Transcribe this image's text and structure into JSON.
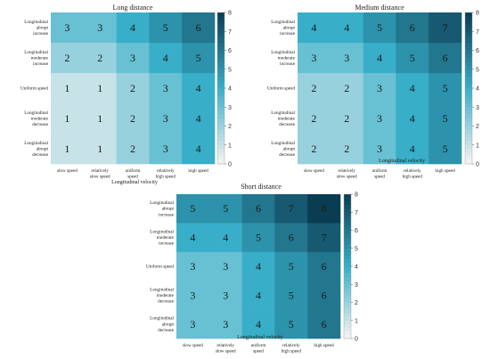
{
  "colors": {
    "scale_low": "#f7f4f2",
    "scale_mid": "#38aec9",
    "scale_high": "#0b3d52",
    "text": "#1a1a1a"
  },
  "chart_data": [
    {
      "type": "heatmap",
      "title": "Long distance",
      "xlabel": "Longitudinal velocity",
      "ylabel": "",
      "columns": [
        "slow speed",
        "relatively slow speed",
        "uniform speed",
        "relatively high speed",
        "high speed"
      ],
      "rows": [
        "Longitudinal abrupt increase",
        "Longitudinal moderate increase",
        "Uniform speed",
        "Longitudinal moderate decrease",
        "Longitudinal abrupt decrease"
      ],
      "values": [
        [
          3,
          3,
          4,
          5,
          6
        ],
        [
          2,
          2,
          3,
          4,
          5
        ],
        [
          1,
          1,
          2,
          3,
          4
        ],
        [
          1,
          1,
          2,
          3,
          4
        ],
        [
          1,
          1,
          2,
          3,
          4
        ]
      ],
      "colorbar": {
        "range": [
          0,
          8
        ],
        "ticks": [
          "0",
          "1",
          "2",
          "3",
          "4",
          "5",
          "6",
          "7",
          "8"
        ]
      }
    },
    {
      "type": "heatmap",
      "title": "Medium distance",
      "xlabel": "Longitudinal velocity",
      "ylabel": "",
      "columns": [
        "slow speed",
        "relatively slow speed",
        "uniform speed",
        "relatively high speed",
        "high speed"
      ],
      "rows": [
        "Longitudinal abrupt increase",
        "Longitudinal moderate increase",
        "Uniform speed",
        "Longitudinal moderate decrease",
        "Longitudinal abrupt decrease"
      ],
      "values": [
        [
          4,
          4,
          5,
          6,
          7
        ],
        [
          3,
          3,
          4,
          5,
          6
        ],
        [
          2,
          2,
          3,
          4,
          5
        ],
        [
          2,
          2,
          3,
          4,
          5
        ],
        [
          2,
          2,
          3,
          4,
          5
        ]
      ],
      "colorbar": {
        "range": [
          0,
          8
        ],
        "ticks": [
          "0",
          "1",
          "2",
          "3",
          "4",
          "5",
          "6",
          "7",
          "8"
        ]
      }
    },
    {
      "type": "heatmap",
      "title": "Short distance",
      "xlabel": "Longitudinal velocity",
      "ylabel": "",
      "columns": [
        "slow speed",
        "relatively slow speed",
        "uniform speed",
        "relatively high speed",
        "high speed"
      ],
      "rows": [
        "Longitudinal abrupt increase",
        "Longitudinal moderate increase",
        "Uniform speed",
        "Longitudinal moderate decrease",
        "Longitudinal abrupt decrease"
      ],
      "values": [
        [
          5,
          5,
          6,
          7,
          8
        ],
        [
          4,
          4,
          5,
          6,
          7
        ],
        [
          3,
          3,
          4,
          5,
          6
        ],
        [
          3,
          3,
          4,
          5,
          6
        ],
        [
          3,
          3,
          4,
          5,
          6
        ]
      ],
      "colorbar": {
        "range": [
          0,
          8
        ],
        "ticks": [
          "0",
          "1",
          "2",
          "3",
          "4",
          "5",
          "6",
          "7",
          "8"
        ]
      }
    }
  ]
}
